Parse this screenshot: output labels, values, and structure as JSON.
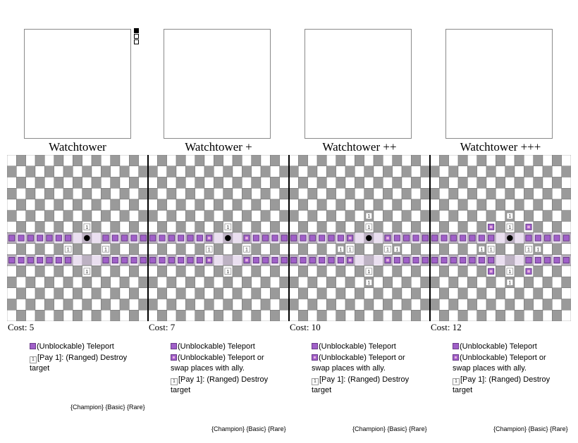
{
  "cards": [
    {
      "title": "Watchtower",
      "cost": "Cost: 5",
      "abilities": [
        {
          "icon": "teleport-icon",
          "text": "(Unblockable) Teleport"
        },
        {
          "icon": "ranged-destroy-icon",
          "text": "[Pay 1]: (Ranged) Destroy target"
        }
      ],
      "tags": "{Champion} {Basic} {Rare}"
    },
    {
      "title": "Watchtower +",
      "cost": "Cost: 7",
      "abilities": [
        {
          "icon": "teleport-icon",
          "text": "(Unblockable) Teleport"
        },
        {
          "icon": "swap-teleport-icon",
          "text": "(Unblockable) Teleport or swap places with ally."
        },
        {
          "icon": "ranged-destroy-icon",
          "text": "[Pay 1]: (Ranged) Destroy target"
        }
      ],
      "tags": "{Champion} {Basic} {Rare}"
    },
    {
      "title": "Watchtower ++",
      "cost": "Cost: 10",
      "abilities": [
        {
          "icon": "teleport-icon",
          "text": "(Unblockable) Teleport"
        },
        {
          "icon": "swap-teleport-icon",
          "text": "(Unblockable) Teleport or swap places with ally."
        },
        {
          "icon": "ranged-destroy-icon",
          "text": "[Pay 1]: (Ranged) Destroy target"
        }
      ],
      "tags": "{Champion} {Basic} {Rare}"
    },
    {
      "title": "Watchtower +++",
      "cost": "Cost: 12",
      "abilities": [
        {
          "icon": "teleport-icon",
          "text": "(Unblockable) Teleport"
        },
        {
          "icon": "swap-teleport-icon",
          "text": "(Unblockable) Teleport or swap places with ally."
        },
        {
          "icon": "ranged-destroy-icon",
          "text": "[Pay 1]: (Ranged) Destroy target"
        }
      ],
      "tags": "{Champion} {Basic} {Rare}"
    }
  ],
  "board": {
    "size": 15,
    "light_color": "#ffffff",
    "dark_color": "#9a9a9a",
    "teleport_color": "#a060c8",
    "swap_color": "#e8b0e0",
    "piece_color": "#000000",
    "marker_label": "1",
    "layouts": [
      {
        "piece": [
          7,
          8
        ],
        "teleport_rows": [
          7,
          9
        ],
        "teleport_gaps": [
          [
            7,
            7
          ],
          [
            7,
            8
          ],
          [
            7,
            9
          ],
          [
            9,
            7
          ],
          [
            9,
            8
          ],
          [
            9,
            9
          ]
        ],
        "swap": [],
        "ones": [
          [
            6,
            8
          ],
          [
            8,
            6
          ],
          [
            8,
            10
          ],
          [
            10,
            8
          ]
        ]
      },
      {
        "piece": [
          7,
          8
        ],
        "teleport_rows": [
          7,
          9
        ],
        "teleport_gaps": [
          [
            7,
            7
          ],
          [
            7,
            8
          ],
          [
            7,
            9
          ],
          [
            9,
            7
          ],
          [
            9,
            8
          ],
          [
            9,
            9
          ]
        ],
        "swap": [
          [
            7,
            6
          ],
          [
            7,
            10
          ],
          [
            9,
            6
          ],
          [
            9,
            10
          ]
        ],
        "ones": [
          [
            6,
            8
          ],
          [
            8,
            6
          ],
          [
            8,
            10
          ],
          [
            10,
            8
          ]
        ]
      },
      {
        "piece": [
          7,
          8
        ],
        "teleport_rows": [
          7,
          9
        ],
        "teleport_gaps": [
          [
            7,
            7
          ],
          [
            7,
            8
          ],
          [
            7,
            9
          ],
          [
            9,
            7
          ],
          [
            9,
            8
          ],
          [
            9,
            9
          ]
        ],
        "swap": [
          [
            7,
            6
          ],
          [
            7,
            10
          ],
          [
            9,
            6
          ],
          [
            9,
            10
          ]
        ],
        "ones": [
          [
            5,
            8
          ],
          [
            6,
            8
          ],
          [
            8,
            5
          ],
          [
            8,
            6
          ],
          [
            8,
            10
          ],
          [
            8,
            11
          ],
          [
            10,
            8
          ],
          [
            11,
            8
          ]
        ]
      },
      {
        "piece": [
          7,
          8
        ],
        "teleport_rows": [
          7,
          9
        ],
        "teleport_gaps": [
          [
            7,
            7
          ],
          [
            7,
            8
          ],
          [
            7,
            9
          ],
          [
            9,
            7
          ],
          [
            9,
            8
          ],
          [
            9,
            9
          ]
        ],
        "swap": [
          [
            6,
            6
          ],
          [
            6,
            10
          ],
          [
            10,
            6
          ],
          [
            10,
            10
          ]
        ],
        "ones": [
          [
            5,
            8
          ],
          [
            6,
            8
          ],
          [
            8,
            5
          ],
          [
            8,
            6
          ],
          [
            8,
            10
          ],
          [
            8,
            11
          ],
          [
            10,
            8
          ],
          [
            11,
            8
          ]
        ]
      }
    ]
  }
}
